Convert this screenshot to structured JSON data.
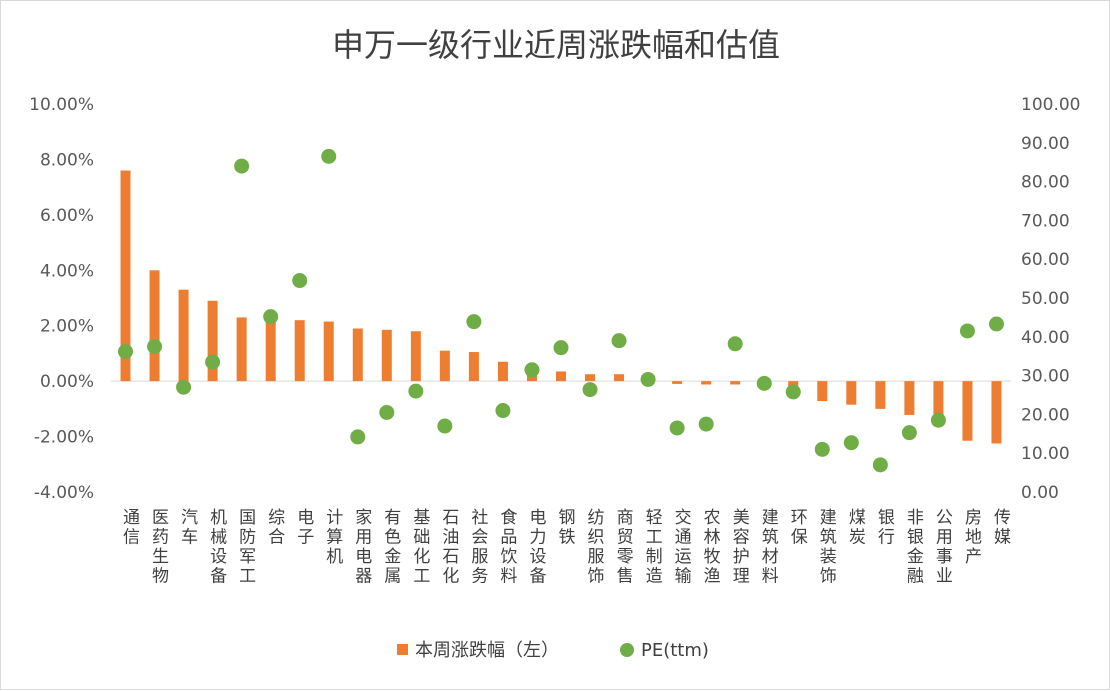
{
  "chart_data": {
    "type": "bar",
    "title": "申万一级行业近周涨跌幅和估值",
    "categories": [
      "通信",
      "医药生物",
      "汽车",
      "机械设备",
      "国防军工",
      "综合",
      "电子",
      "计算机",
      "家用电器",
      "有色金属",
      "基础化工",
      "石油石化",
      "社会服务",
      "食品饮料",
      "电力设备",
      "钢铁",
      "纺织服饰",
      "商贸零售",
      "轻工制造",
      "交通运输",
      "农林牧渔",
      "美容护理",
      "建筑材料",
      "环保",
      "建筑装饰",
      "煤炭",
      "银行",
      "非银金融",
      "公用事业",
      "房地产",
      "传媒"
    ],
    "series": [
      {
        "name": "本周涨跌幅（左）",
        "type": "bar",
        "axis": "left",
        "color": "#ED7D31",
        "values": [
          7.6,
          4.0,
          3.3,
          2.9,
          2.3,
          2.25,
          2.2,
          2.15,
          1.9,
          1.85,
          1.8,
          1.1,
          1.05,
          0.7,
          0.5,
          0.35,
          0.25,
          0.25,
          0.05,
          -0.1,
          -0.12,
          -0.12,
          -0.15,
          -0.3,
          -0.72,
          -0.85,
          -1.0,
          -1.22,
          -1.3,
          -2.15,
          -2.25
        ]
      },
      {
        "name": "PE(ttm)",
        "type": "scatter",
        "axis": "right",
        "color": "#70AD47",
        "values": [
          36.2,
          37.5,
          27.0,
          33.5,
          84.0,
          45.2,
          54.5,
          86.5,
          14.2,
          20.5,
          26.0,
          17.0,
          43.9,
          21.0,
          31.5,
          37.2,
          26.4,
          39.0,
          29.0,
          16.5,
          17.5,
          38.2,
          28.0,
          25.8,
          11.0,
          12.7,
          7.0,
          15.3,
          18.5,
          41.5,
          43.3
        ]
      }
    ],
    "y_left": {
      "ylim": [
        -4,
        10
      ],
      "ticks": [
        -4,
        -2,
        0,
        2,
        4,
        6,
        8,
        10
      ],
      "tick_labels": [
        "-4.00%",
        "-2.00%",
        "0.00%",
        "2.00%",
        "4.00%",
        "6.00%",
        "8.00%",
        "10.00%"
      ]
    },
    "y_right": {
      "ylim": [
        0,
        100
      ],
      "ticks": [
        0,
        10,
        20,
        30,
        40,
        50,
        60,
        70,
        80,
        90,
        100
      ],
      "tick_labels": [
        "0.00",
        "10.00",
        "20.00",
        "30.00",
        "40.00",
        "50.00",
        "60.00",
        "70.00",
        "80.00",
        "90.00",
        "100.00"
      ]
    },
    "grid": false,
    "legend": "bottom"
  }
}
